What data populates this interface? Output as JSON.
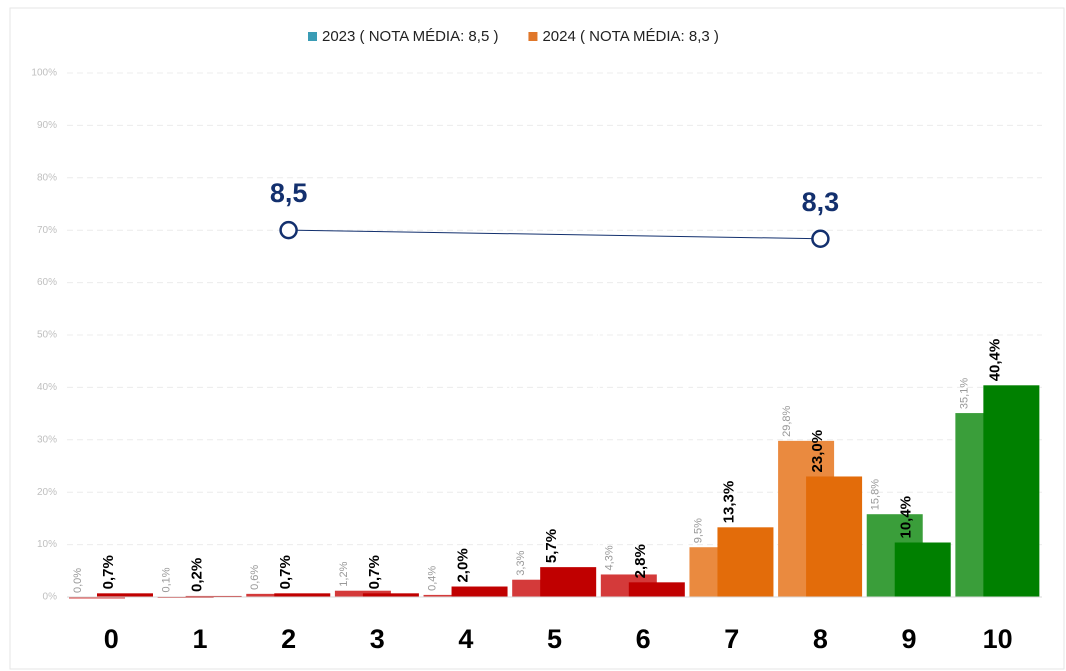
{
  "chart_data": {
    "type": "bar",
    "categories": [
      "0",
      "1",
      "2",
      "3",
      "4",
      "5",
      "6",
      "7",
      "8",
      "9",
      "10"
    ],
    "series": [
      {
        "name": "2023 ( NOTA MÉDIA: 8,5 )",
        "color": "#3a9cb5",
        "colors": [
          "#d43a3a",
          "#d43a3a",
          "#d43a3a",
          "#d43a3a",
          "#d43a3a",
          "#d43a3a",
          "#d43a3a",
          "#ea8a3f",
          "#ea8a3f",
          "#3a9e3a",
          "#3a9e3a"
        ],
        "values": [
          0.0,
          0.1,
          0.6,
          1.2,
          0.4,
          3.3,
          4.3,
          9.5,
          29.8,
          15.8,
          35.1
        ],
        "value_labels": [
          "0,0%",
          "0,1%",
          "0,6%",
          "1,2%",
          "0,4%",
          "3,3%",
          "4,3%",
          "9,5%",
          "29,8%",
          "15,8%",
          "35,1%"
        ]
      },
      {
        "name": "2024 ( NOTA MÉDIA: 8,3 )",
        "color": "#e0772a",
        "colors": [
          "#c00000",
          "#c00000",
          "#c00000",
          "#c00000",
          "#c00000",
          "#c00000",
          "#c00000",
          "#e36c0a",
          "#e36c0a",
          "#008000",
          "#008000"
        ],
        "values": [
          0.7,
          0.2,
          0.7,
          0.7,
          2.0,
          5.7,
          2.8,
          13.3,
          23.0,
          10.4,
          40.4
        ],
        "value_labels": [
          "0,7%",
          "0,2%",
          "0,7%",
          "0,7%",
          "2,0%",
          "5,7%",
          "2,8%",
          "13,3%",
          "23,0%",
          "10,4%",
          "40,4%"
        ]
      }
    ],
    "mean_series": {
      "type": "line",
      "axis": "y2",
      "color": "#13306e",
      "x": [
        "2",
        "8"
      ],
      "values": [
        8.5,
        8.3
      ],
      "value_labels": [
        "8,5",
        "8,3"
      ]
    },
    "ylim": [
      0,
      100
    ],
    "y2lim": [
      0,
      12.14
    ],
    "yticks": [
      {
        "value": 0,
        "label": "0%"
      },
      {
        "value": 10,
        "label": "10%"
      },
      {
        "value": 20,
        "label": "20%"
      },
      {
        "value": 30,
        "label": "30%"
      },
      {
        "value": 40,
        "label": "40%"
      },
      {
        "value": 50,
        "label": "50%"
      },
      {
        "value": 60,
        "label": "60%"
      },
      {
        "value": 70,
        "label": "70%"
      },
      {
        "value": 80,
        "label": "80%"
      },
      {
        "value": 90,
        "label": "90%"
      },
      {
        "value": 100,
        "label": "100%"
      }
    ],
    "grid": true,
    "legend": "top"
  }
}
